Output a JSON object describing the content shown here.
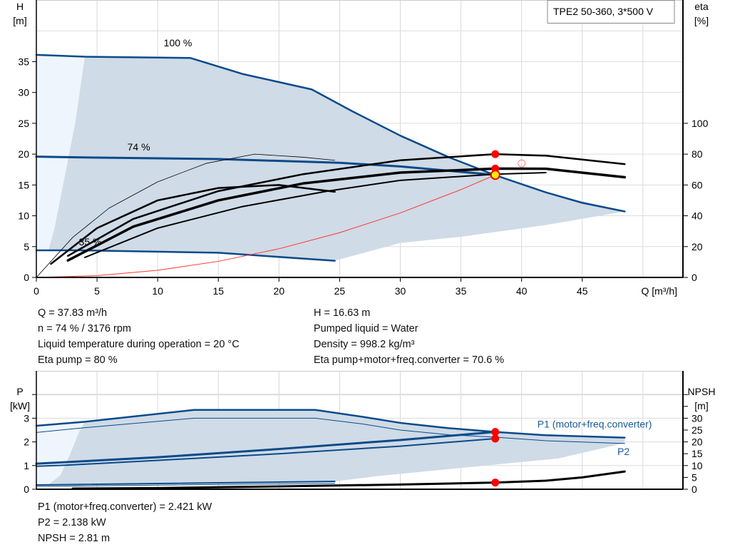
{
  "chart_data": [
    {
      "type": "line",
      "title": "TPE2 50-360, 3*500 V",
      "xlabel": "Q [m³/h]",
      "ylabel": [
        "H",
        "[m]"
      ],
      "y2label": [
        "eta",
        "[%]"
      ],
      "xlim": [
        0,
        53.3
      ],
      "ylim": [
        0,
        45
      ],
      "y2lim": [
        0,
        180
      ],
      "xticks": [
        0,
        5,
        10,
        15,
        20,
        25,
        30,
        35,
        40,
        45
      ],
      "yticks": [
        0,
        5,
        10,
        15,
        20,
        25,
        30,
        35
      ],
      "y2ticks": [
        0,
        20,
        40,
        60,
        80,
        100
      ],
      "grid": true,
      "colors": {
        "curve": "#0a4a8a",
        "region": "#cfdbe6",
        "region_light": "#eef5fc",
        "eta": "#000000",
        "system": "#ff3333",
        "point": "#ff0000",
        "duty": "#ffee00"
      },
      "speed_labels": [
        {
          "text": "100 %",
          "q": 10.5,
          "h": 37.5
        },
        {
          "text": "74 %",
          "q": 7.5,
          "h": 20.6
        },
        {
          "text": "35 %",
          "q": 3.5,
          "h": 5.2
        }
      ],
      "region_light": [
        [
          0,
          36.1
        ],
        [
          4,
          35.8
        ],
        [
          3.2,
          25
        ],
        [
          2.2,
          15
        ],
        [
          1.5,
          8
        ],
        [
          1,
          4.4
        ],
        [
          0,
          4.4
        ]
      ],
      "region": [
        [
          4,
          35.8
        ],
        [
          12.7,
          35.6
        ],
        [
          17,
          33
        ],
        [
          22.7,
          30.5
        ],
        [
          26,
          27
        ],
        [
          30,
          23
        ],
        [
          34,
          19.5
        ],
        [
          37.8,
          16.6
        ],
        [
          42,
          13.8
        ],
        [
          48.5,
          10.7
        ],
        [
          42,
          8.5
        ],
        [
          35,
          6.6
        ],
        [
          30,
          5.6
        ],
        [
          24.6,
          2.7
        ],
        [
          15,
          4.0
        ],
        [
          1,
          4.4
        ],
        [
          1.5,
          8
        ],
        [
          2.2,
          15
        ],
        [
          3.2,
          25
        ]
      ],
      "series": [
        {
          "axis": "H",
          "role": "speed-100",
          "width": 2.5,
          "points": [
            [
              0,
              36.1
            ],
            [
              4,
              35.8
            ],
            [
              12.7,
              35.6
            ],
            [
              17,
              33
            ],
            [
              22.7,
              30.5
            ],
            [
              26,
              27
            ],
            [
              30,
              23
            ],
            [
              34,
              19.5
            ],
            [
              37.8,
              16.6
            ],
            [
              42,
              13.8
            ],
            [
              45,
              12.1
            ],
            [
              48.5,
              10.7
            ]
          ]
        },
        {
          "axis": "H",
          "role": "speed-74",
          "width": 3,
          "points": [
            [
              0,
              19.6
            ],
            [
              2.6,
              19.5
            ],
            [
              15,
              19.2
            ],
            [
              25,
              18.6
            ],
            [
              30,
              18.0
            ],
            [
              37.83,
              16.63
            ]
          ]
        },
        {
          "axis": "H",
          "role": "speed-35",
          "width": 2.5,
          "points": [
            [
              0,
              4.4
            ],
            [
              3.5,
              4.4
            ],
            [
              15,
              4.0
            ],
            [
              24.6,
              2.7
            ]
          ]
        },
        {
          "axis": "H",
          "role": "system",
          "width": 1,
          "points": [
            [
              0,
              0
            ],
            [
              5,
              0.29
            ],
            [
              10,
              1.16
            ],
            [
              15,
              2.61
            ],
            [
              20,
              4.65
            ],
            [
              25,
              7.26
            ],
            [
              30,
              10.46
            ],
            [
              35,
              14.24
            ],
            [
              37.83,
              16.63
            ]
          ]
        },
        {
          "axis": "eta",
          "role": "eta-thin",
          "width": 0.8,
          "points": [
            [
              0,
              0
            ],
            [
              3,
              26
            ],
            [
              6,
              45
            ],
            [
              10,
              62
            ],
            [
              14,
              74
            ],
            [
              18,
              80
            ],
            [
              22,
              78
            ],
            [
              24.6,
              76
            ]
          ]
        },
        {
          "axis": "eta",
          "role": "eta-a",
          "width": 2.5,
          "points": [
            [
              1.2,
              8.8
            ],
            [
              5,
              32
            ],
            [
              10,
              50
            ],
            [
              15,
              58
            ],
            [
              20,
              60
            ],
            [
              24.6,
              55.6
            ]
          ]
        },
        {
          "axis": "eta",
          "role": "eta-pump",
          "width": 2.5,
          "points": [
            [
              2.6,
              14
            ],
            [
              8,
              38
            ],
            [
              15,
              56
            ],
            [
              22,
              67
            ],
            [
              30,
              76
            ],
            [
              37.83,
              80
            ],
            [
              42,
              79
            ],
            [
              48.5,
              73.5
            ]
          ]
        },
        {
          "axis": "eta",
          "role": "eta-total",
          "width": 3.5,
          "points": [
            [
              2.6,
              11
            ],
            [
              8,
              33
            ],
            [
              15,
              50
            ],
            [
              22,
              61
            ],
            [
              30,
              68
            ],
            [
              37.83,
              70.6
            ],
            [
              42,
              70.5
            ],
            [
              48.5,
              65
            ]
          ]
        },
        {
          "axis": "eta",
          "role": "eta-b",
          "width": 2,
          "points": [
            [
              4,
              13
            ],
            [
              10,
              32
            ],
            [
              17,
              46
            ],
            [
              24,
              56
            ],
            [
              30,
              63
            ],
            [
              37.83,
              67
            ],
            [
              42,
              68
            ]
          ]
        }
      ],
      "points": [
        {
          "axis": "eta",
          "q": 37.83,
          "v": 80,
          "style": "filled"
        },
        {
          "axis": "eta",
          "q": 37.83,
          "v": 70.6,
          "style": "filled"
        },
        {
          "axis": "eta",
          "q": 40,
          "v": 74,
          "style": "open"
        },
        {
          "axis": "H",
          "q": 37.83,
          "v": 16.63,
          "style": "duty"
        }
      ]
    },
    {
      "type": "line",
      "xlim": [
        0,
        53.3
      ],
      "ylabel": [
        "P",
        "[kW]"
      ],
      "y2label": [
        "NPSH",
        "[m]"
      ],
      "ylim": [
        0,
        5
      ],
      "y2lim": [
        0,
        50
      ],
      "yticks": [
        0,
        1,
        2,
        3
      ],
      "y2ticks": [
        0,
        5,
        10,
        15,
        20,
        25,
        30
      ],
      "series_labels": [
        {
          "text": "P1 (motor+freq.converter)",
          "q": 41.3,
          "p": 2.6
        },
        {
          "text": "P2",
          "q": 47.9,
          "p": 1.45
        }
      ],
      "region_light": [
        [
          0,
          2.68
        ],
        [
          4,
          2.85
        ],
        [
          3.5,
          2.4
        ],
        [
          2.8,
          1.5
        ],
        [
          2,
          0.6
        ],
        [
          1,
          0.2
        ],
        [
          0,
          0.2
        ]
      ],
      "region": [
        [
          4,
          2.85
        ],
        [
          13,
          3.35
        ],
        [
          23,
          3.35
        ],
        [
          30,
          2.75
        ],
        [
          37.8,
          2.42
        ],
        [
          48.5,
          2.18
        ],
        [
          48.5,
          1.95
        ],
        [
          43,
          1.3
        ],
        [
          35,
          0.9
        ],
        [
          28,
          0.55
        ],
        [
          24.6,
          0.33
        ],
        [
          15,
          0.28
        ],
        [
          1,
          0.2
        ],
        [
          2,
          0.6
        ],
        [
          2.8,
          1.5
        ],
        [
          3.5,
          2.4
        ]
      ],
      "series": [
        {
          "axis": "P",
          "role": "P1-100",
          "width": 2.5,
          "points": [
            [
              0,
              2.68
            ],
            [
              4,
              2.85
            ],
            [
              13,
              3.35
            ],
            [
              23,
              3.35
            ],
            [
              27,
              3.05
            ],
            [
              30,
              2.8
            ],
            [
              34,
              2.58
            ],
            [
              37.83,
              2.421
            ],
            [
              42,
              2.28
            ],
            [
              48.5,
              2.18
            ]
          ]
        },
        {
          "axis": "P",
          "role": "P2-100",
          "width": 1,
          "points": [
            [
              0,
              2.4
            ],
            [
              4,
              2.6
            ],
            [
              13,
              3.0
            ],
            [
              23,
              3.0
            ],
            [
              27,
              2.75
            ],
            [
              30,
              2.5
            ],
            [
              34,
              2.3
            ],
            [
              37.83,
              2.2
            ],
            [
              42,
              2.05
            ],
            [
              48.5,
              1.93
            ]
          ]
        },
        {
          "axis": "P",
          "role": "P1-74",
          "width": 3,
          "points": [
            [
              0,
              1.08
            ],
            [
              2.6,
              1.15
            ],
            [
              10,
              1.35
            ],
            [
              20,
              1.7
            ],
            [
              30,
              2.08
            ],
            [
              37.83,
              2.421
            ]
          ]
        },
        {
          "axis": "P",
          "role": "P2-74",
          "width": 2,
          "points": [
            [
              0,
              0.97
            ],
            [
              2.6,
              1.02
            ],
            [
              10,
              1.22
            ],
            [
              20,
              1.5
            ],
            [
              30,
              1.82
            ],
            [
              37.83,
              2.138
            ]
          ]
        },
        {
          "axis": "P",
          "role": "P1-35",
          "width": 2,
          "points": [
            [
              0,
              0.18
            ],
            [
              24.6,
              0.33
            ]
          ]
        },
        {
          "axis": "P",
          "role": "P2-35",
          "width": 1,
          "points": [
            [
              0,
              0.12
            ],
            [
              24.6,
              0.25
            ]
          ]
        },
        {
          "axis": "NPSH",
          "role": "npsh",
          "width": 3,
          "points": [
            [
              3,
              0.3
            ],
            [
              10,
              0.5
            ],
            [
              20,
              1.2
            ],
            [
              30,
              2.0
            ],
            [
              37.83,
              2.81
            ],
            [
              42,
              3.6
            ],
            [
              45,
              5
            ],
            [
              48.5,
              7.5
            ]
          ]
        }
      ],
      "points": [
        {
          "axis": "P",
          "q": 37.83,
          "v": 2.421,
          "style": "filled"
        },
        {
          "axis": "P",
          "q": 37.83,
          "v": 2.138,
          "style": "filled"
        },
        {
          "axis": "NPSH",
          "q": 37.83,
          "v": 2.81,
          "style": "filled"
        }
      ]
    }
  ],
  "results": {
    "left": [
      "Q = 37.83 m³/h",
      "n = 74 % / 3176 rpm",
      "Liquid temperature during operation = 20 °C",
      "Eta pump = 80 %"
    ],
    "right": [
      "H = 16.63 m",
      "Pumped liquid = Water",
      "Density = 998.2 kg/m³",
      "Eta pump+motor+freq.converter = 70.6 %"
    ],
    "power": [
      "P1 (motor+freq.converter) = 2.421 kW",
      "P2 = 2.138 kW",
      "NPSH = 2.81 m"
    ]
  }
}
